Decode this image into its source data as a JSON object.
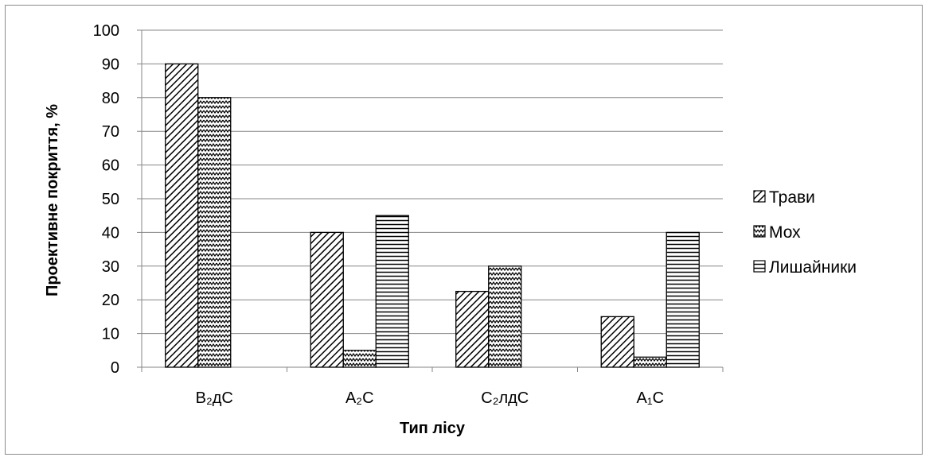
{
  "chart_data": {
    "type": "bar",
    "categories": [
      "B₂дС",
      "A₂C",
      "C₂лдС",
      "A₁C"
    ],
    "series": [
      {
        "name": "Трави",
        "values": [
          90,
          40,
          22.5,
          15
        ],
        "pattern": "diagonal-hatch"
      },
      {
        "name": "Мох",
        "values": [
          80,
          5,
          30,
          3
        ],
        "pattern": "zigzag"
      },
      {
        "name": "Лишайники",
        "values": [
          null,
          45,
          null,
          40
        ],
        "pattern": "horizontal-lines"
      }
    ],
    "title": "",
    "xlabel": "Тип лісу",
    "ylabel": "Проективне покриття, %",
    "ylim": [
      0,
      100
    ],
    "yticks": [
      0,
      10,
      20,
      30,
      40,
      50,
      60,
      70,
      80,
      90,
      100
    ],
    "grid": true,
    "legend_position": "right",
    "colors": {
      "bar_stroke": "#000000",
      "bar_pattern": "#000000",
      "gridline": "#868686",
      "axis": "#868686"
    }
  }
}
